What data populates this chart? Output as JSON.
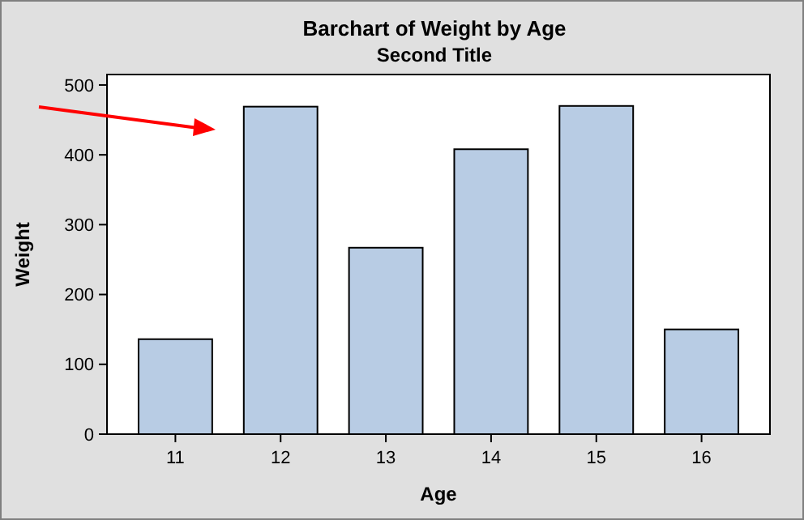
{
  "chart_data": {
    "type": "bar",
    "title": "Barchart of Weight by Age",
    "subtitle": "Second Title",
    "xlabel": "Age",
    "ylabel": "Weight",
    "categories": [
      "11",
      "12",
      "13",
      "14",
      "15",
      "16"
    ],
    "values": [
      136,
      469,
      267,
      408,
      470,
      150
    ],
    "color": "#b8cce4",
    "ylim": [
      0,
      515
    ],
    "yticks": [
      0,
      100,
      200,
      300,
      400,
      500
    ],
    "grid": false
  }
}
